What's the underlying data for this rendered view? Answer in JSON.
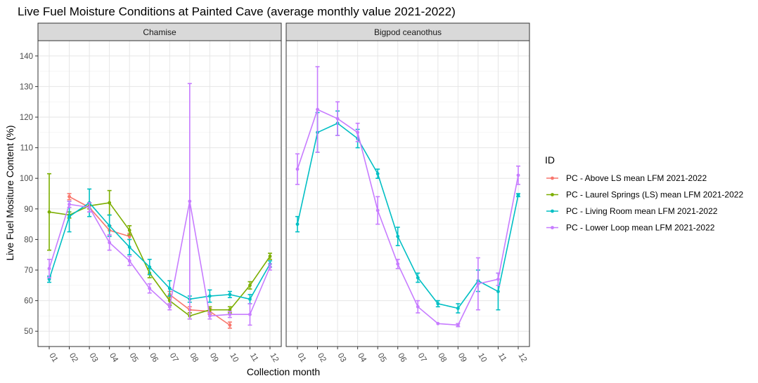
{
  "chart_data": {
    "type": "line",
    "title": "Live Fuel Moisture Conditions at Painted Cave (average monthly value 2021-2022)",
    "xlabel": "Collection month",
    "ylabel": "Live Fuel Mositure Content (%)",
    "categories": [
      "01",
      "02",
      "03",
      "04",
      "05",
      "06",
      "07",
      "08",
      "09",
      "10",
      "11",
      "12"
    ],
    "y_ticks": [
      "50",
      "60",
      "70",
      "80",
      "90",
      "100",
      "110",
      "120",
      "130",
      "140"
    ],
    "ylim": [
      45,
      145
    ],
    "grid": true,
    "legend": {
      "title": "ID",
      "placement": "right"
    },
    "series": [
      {
        "name": "PC - Above LS mean LFM 2021-2022",
        "color": "#F8766D"
      },
      {
        "name": "PC - Laurel Springs (LS) mean LFM 2021-2022",
        "color": "#7CAE00"
      },
      {
        "name": "PC - Living Room mean LFM 2021-2022",
        "color": "#00BFC4"
      },
      {
        "name": "PC - Lower Loop mean LFM 2021-2022",
        "color": "#C77CFF"
      }
    ],
    "panels": [
      {
        "label": "Chamise",
        "series": [
          {
            "values": [
              null,
              94,
              90.5,
              83,
              81,
              null,
              62,
              57,
              56.5,
              52,
              null,
              null
            ],
            "errors": [
              null,
              1,
              1.5,
              1.5,
              1,
              null,
              1,
              1,
              1,
              1,
              null,
              null
            ]
          },
          {
            "values": [
              89,
              88,
              91,
              92,
              83,
              69,
              60,
              55,
              57,
              57,
              65,
              74.5
            ],
            "errors": [
              12.5,
              1,
              1,
              4,
              1.5,
              1.5,
              1.5,
              1,
              1,
              1,
              1.2,
              1
            ]
          },
          {
            "values": [
              67,
              87.5,
              92,
              84.5,
              77.5,
              71,
              64,
              60.5,
              61.5,
              62,
              60.5,
              72
            ],
            "errors": [
              1,
              5,
              4.5,
              3.5,
              2.5,
              2.5,
              2.5,
              1,
              2,
              1,
              1.5,
              1
            ]
          },
          {
            "values": [
              70.5,
              91.5,
              90.5,
              79,
              73,
              64,
              58,
              92.5,
              55,
              55.5,
              55.5,
              71
            ],
            "errors": [
              3,
              1,
              1.5,
              2.5,
              1.5,
              1.5,
              1,
              38.5,
              1,
              1,
              3.5,
              1
            ]
          }
        ]
      },
      {
        "label": "Bigpod ceanothus",
        "series": [
          {
            "values": [
              null,
              null,
              null,
              null,
              null,
              null,
              null,
              null,
              null,
              null,
              null,
              null
            ],
            "errors": [
              null,
              null,
              null,
              null,
              null,
              null,
              null,
              null,
              null,
              null,
              null,
              null
            ]
          },
          {
            "values": [
              null,
              null,
              null,
              null,
              null,
              null,
              null,
              null,
              null,
              null,
              null,
              null
            ],
            "errors": [
              null,
              null,
              null,
              null,
              null,
              null,
              null,
              null,
              null,
              null,
              null,
              null
            ]
          },
          {
            "values": [
              85,
              115,
              118,
              113,
              101.5,
              81,
              67.5,
              59,
              57.5,
              66.5,
              63,
              94.5
            ],
            "errors": [
              2.5,
              6.5,
              4,
              3,
              1.5,
              3,
              1.5,
              1,
              1.5,
              3.5,
              6,
              0.5
            ]
          },
          {
            "values": [
              103,
              122.5,
              119.5,
              115,
              89.5,
              72,
              58,
              52.5,
              52,
              65.5,
              67,
              101
            ],
            "errors": [
              5,
              14,
              5.5,
              3,
              4.5,
              1.5,
              2,
              null,
              0.5,
              8.5,
              2,
              3
            ]
          }
        ]
      }
    ]
  }
}
